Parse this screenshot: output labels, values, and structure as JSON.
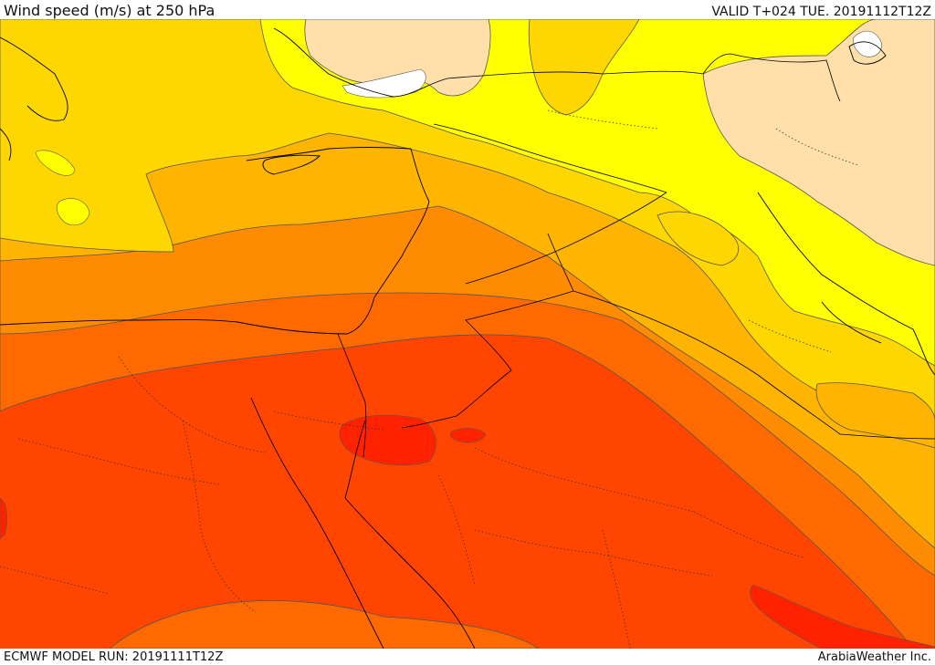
{
  "header": {
    "title": "Wind speed (m/s) at 250 hPa",
    "valid": "VALID T+024 TUE. 20191112T12Z"
  },
  "footer": {
    "model_run": "ECMWF MODEL RUN: 20191111T12Z",
    "credit": "ArabiaWeather Inc."
  },
  "colors": {
    "background": "#ffffff",
    "band_pale": "#ffe0aa",
    "band_yellow": "#ffff00",
    "band_gold": "#ffd700",
    "band_amber": "#ffb400",
    "band_orange": "#ff8c00",
    "band_deep_orange": "#ff6a00",
    "band_red_orange": "#ff4500",
    "band_red": "#ff2200",
    "contour": "#555555",
    "border": "#000000"
  }
}
